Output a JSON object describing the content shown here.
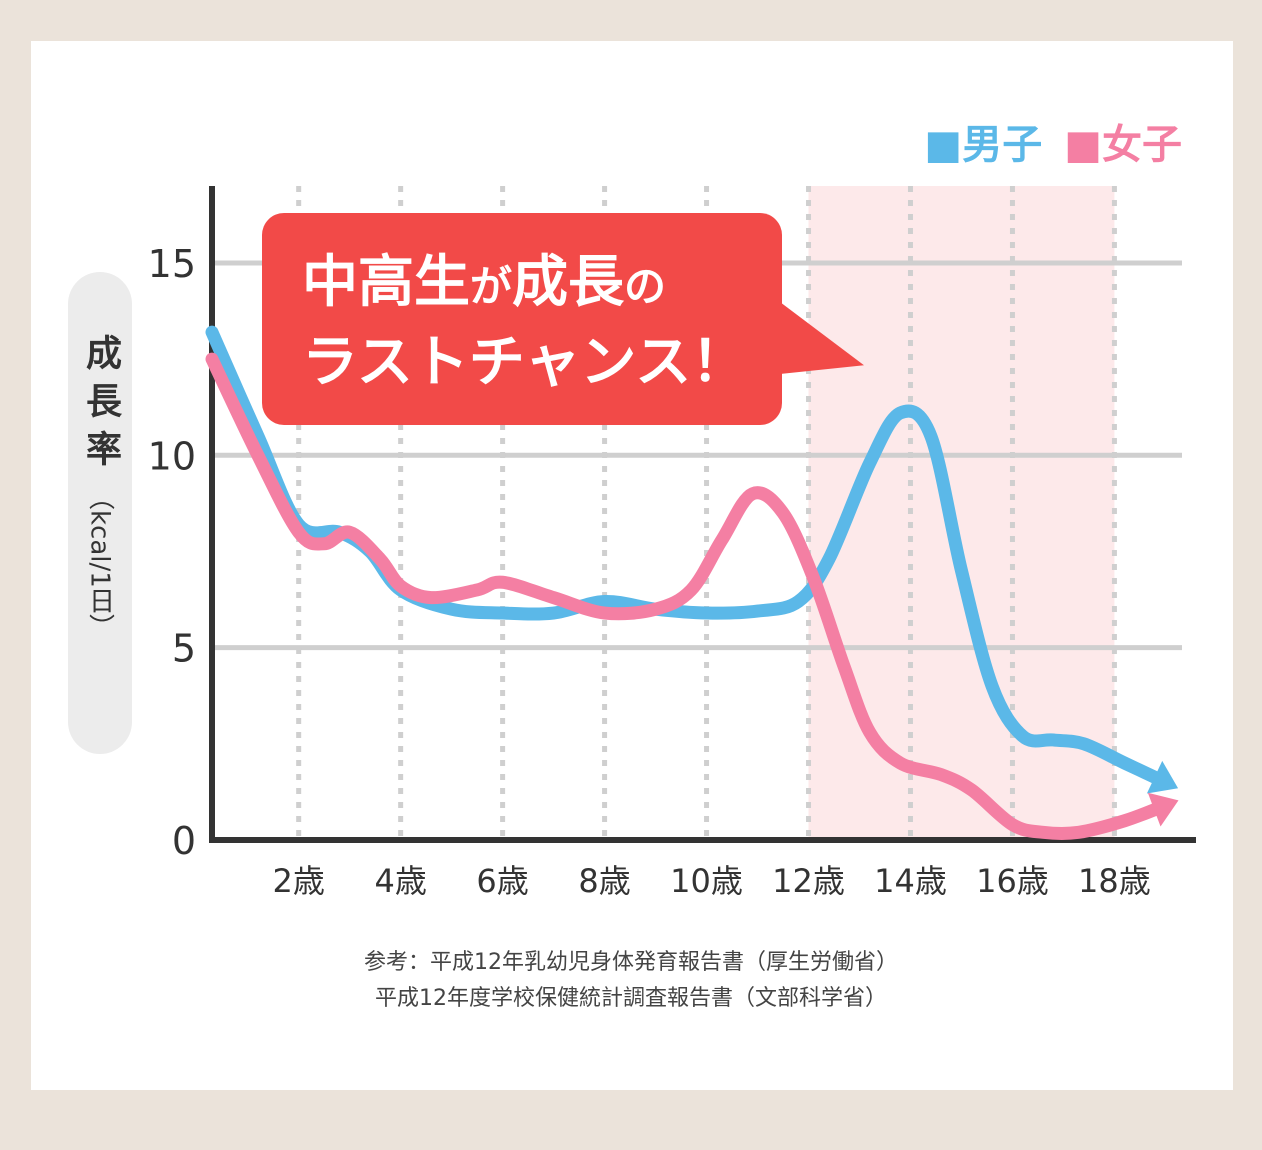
{
  "legend": {
    "boys": "■男子",
    "girls": "■女子"
  },
  "callout": {
    "line1_a": "中高生",
    "line1_b": "が",
    "line1_c": "成長",
    "line1_d": "の",
    "line2": "ラストチャンス！"
  },
  "y_axis_label": "成長率",
  "y_axis_unit": "（kcal/1日）",
  "source": {
    "line1": "参考：平成12年乳幼児身体発育報告書（厚生労働省）",
    "line2": "平成12年度学校保健統計調査報告書（文部科学省）"
  },
  "colors": {
    "boys": "#5bb8e8",
    "girls": "#f47fa3",
    "highlight": "#fde9ea",
    "callout": "#f24a48",
    "grid": "#cfcfcf",
    "axis": "#333333"
  },
  "chart_data": {
    "type": "line",
    "title": "",
    "xlabel": "",
    "ylabel": "成長率（kcal/1日）",
    "xlim": [
      0.3,
      19.6
    ],
    "ylim": [
      0,
      17
    ],
    "x_ticks": [
      2,
      4,
      6,
      8,
      10,
      12,
      14,
      16,
      18
    ],
    "x_tick_labels": [
      "2歳",
      "4歳",
      "6歳",
      "8歳",
      "10歳",
      "12歳",
      "14歳",
      "16歳",
      "18歳"
    ],
    "y_ticks": [
      0,
      5,
      10,
      15
    ],
    "y_tick_labels": [
      "0",
      "5",
      "10",
      "15"
    ],
    "highlight_range": [
      12,
      18
    ],
    "grid": true,
    "legend_position": "top-right",
    "series": [
      {
        "name": "男子",
        "color_key": "boys",
        "points": [
          [
            0.3,
            13.2
          ],
          [
            1.2,
            10.5
          ],
          [
            2.0,
            8.2
          ],
          [
            2.8,
            8.0
          ],
          [
            3.4,
            7.5
          ],
          [
            4.0,
            6.5
          ],
          [
            5.0,
            6.0
          ],
          [
            6.0,
            5.9
          ],
          [
            7.0,
            5.9
          ],
          [
            8.0,
            6.2
          ],
          [
            9.0,
            6.0
          ],
          [
            10.0,
            5.9
          ],
          [
            11.0,
            5.95
          ],
          [
            11.8,
            6.2
          ],
          [
            12.4,
            7.3
          ],
          [
            13.2,
            9.8
          ],
          [
            13.8,
            11.1
          ],
          [
            14.4,
            10.5
          ],
          [
            15.0,
            7.0
          ],
          [
            15.6,
            4.0
          ],
          [
            16.2,
            2.7
          ],
          [
            16.8,
            2.6
          ],
          [
            17.4,
            2.5
          ],
          [
            18.2,
            2.0
          ],
          [
            19.0,
            1.5
          ]
        ]
      },
      {
        "name": "女子",
        "color_key": "girls",
        "points": [
          [
            0.3,
            12.5
          ],
          [
            1.2,
            10.0
          ],
          [
            2.0,
            8.0
          ],
          [
            2.5,
            7.7
          ],
          [
            3.0,
            8.0
          ],
          [
            3.6,
            7.3
          ],
          [
            4.0,
            6.6
          ],
          [
            4.6,
            6.3
          ],
          [
            5.5,
            6.5
          ],
          [
            6.0,
            6.7
          ],
          [
            7.0,
            6.3
          ],
          [
            8.0,
            5.9
          ],
          [
            9.0,
            6.0
          ],
          [
            9.7,
            6.5
          ],
          [
            10.3,
            7.8
          ],
          [
            10.9,
            9.0
          ],
          [
            11.5,
            8.5
          ],
          [
            12.1,
            6.8
          ],
          [
            12.7,
            4.5
          ],
          [
            13.2,
            2.8
          ],
          [
            13.8,
            2.0
          ],
          [
            14.6,
            1.7
          ],
          [
            15.2,
            1.3
          ],
          [
            16.0,
            0.4
          ],
          [
            16.6,
            0.2
          ],
          [
            17.3,
            0.2
          ],
          [
            18.2,
            0.5
          ],
          [
            19.0,
            0.9
          ]
        ]
      }
    ]
  }
}
